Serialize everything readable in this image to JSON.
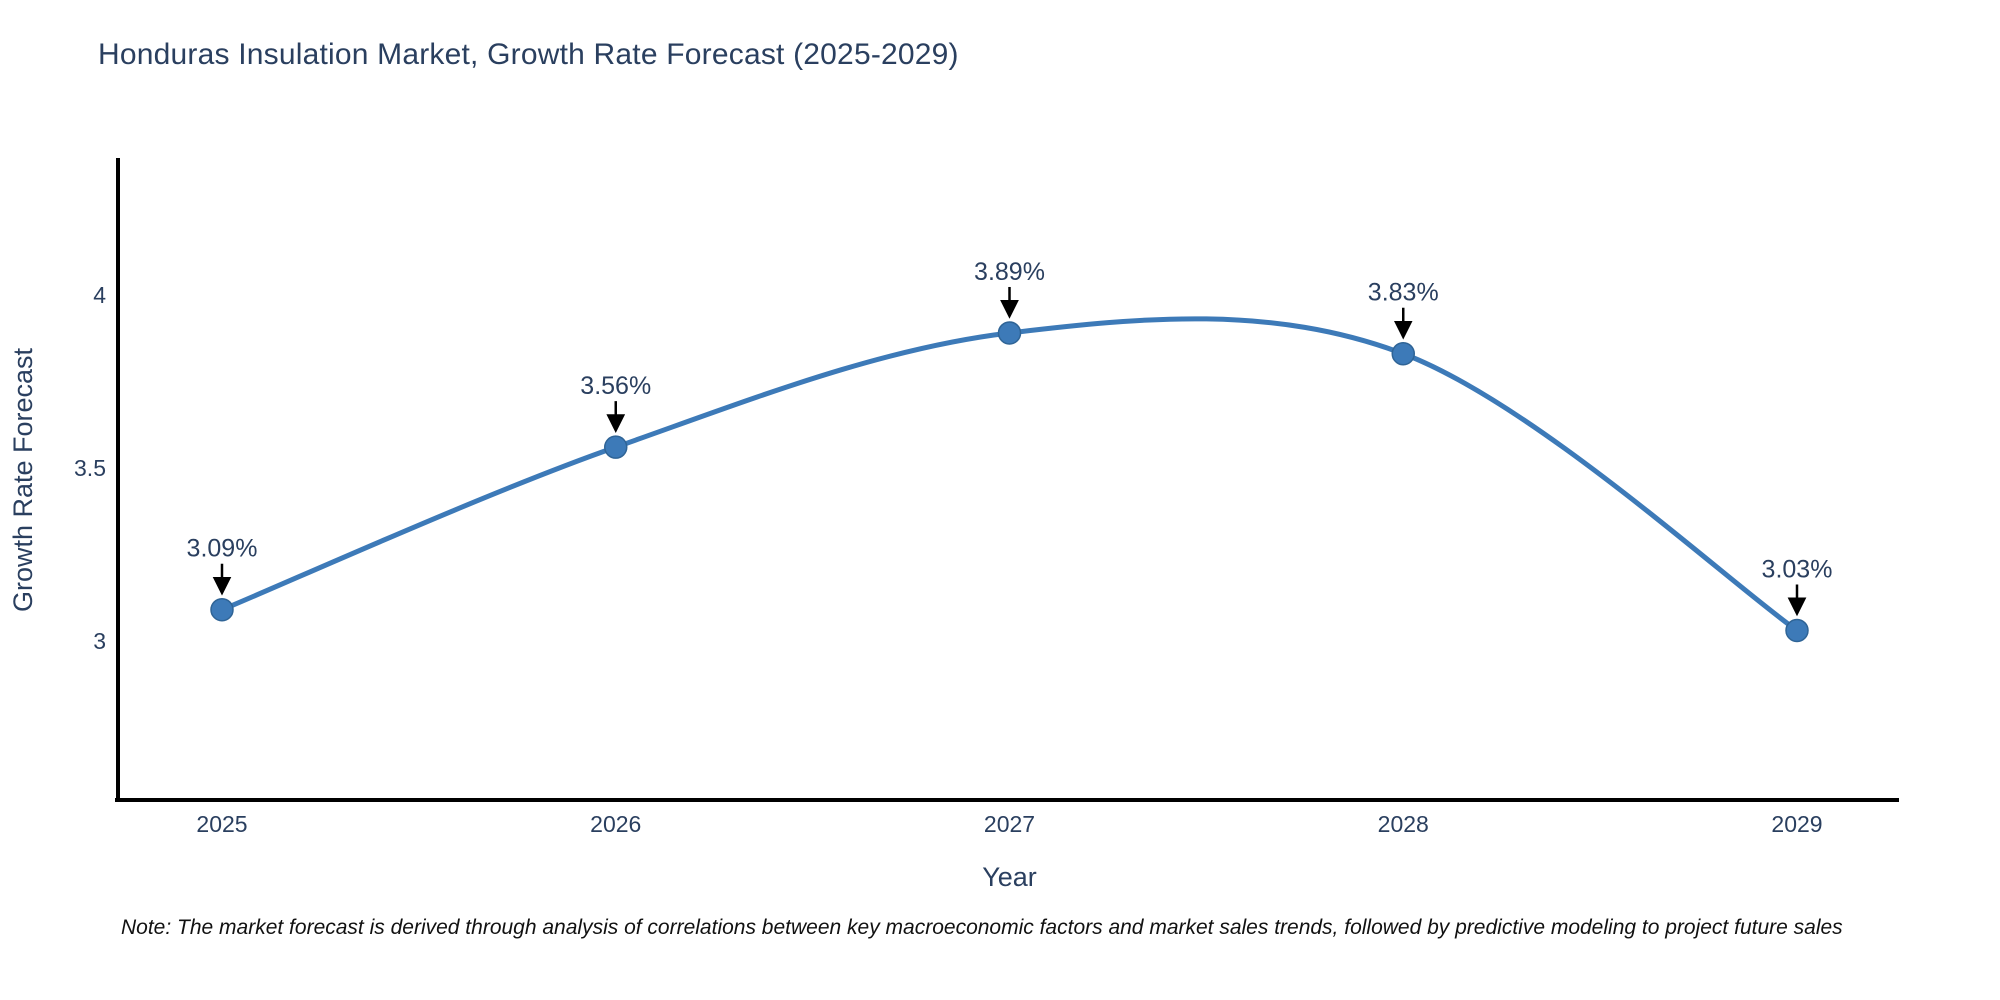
{
  "title": "Honduras Insulation Market, Growth Rate Forecast (2025-2029)",
  "note": "Note: The market forecast is derived through analysis of correlations between key macroeconomic factors and market sales trends, followed by predictive modeling to project future sales",
  "chart_data": {
    "type": "line",
    "title": "Honduras Insulation Market, Growth Rate Forecast (2025-2029)",
    "xlabel": "Year",
    "ylabel": "Growth Rate Forecast",
    "categories": [
      "2025",
      "2026",
      "2027",
      "2028",
      "2029"
    ],
    "values": [
      3.09,
      3.56,
      3.89,
      3.83,
      3.03
    ],
    "point_labels": [
      "3.09%",
      "3.56%",
      "3.89%",
      "3.83%",
      "3.03%"
    ],
    "ytick_values": [
      3,
      3.5,
      4
    ],
    "ytick_labels": [
      "3",
      "3.5",
      "4"
    ],
    "ylim": [
      2.54,
      4.39
    ],
    "line_shape": "spline",
    "grid": false,
    "legend": false,
    "markers": true,
    "annotations_arrows": true,
    "colors": {
      "line": "#3d7ab8",
      "marker": "#3d7ab8",
      "marker_edge": "#2f6496",
      "axis_line": "#000000",
      "tick_text": "#2a3f5f",
      "axis_title_text": "#2a3f5f",
      "annotation_text": "#2a3f5f",
      "arrow": "#000000",
      "note_text": "#111111",
      "background": "#ffffff"
    }
  }
}
